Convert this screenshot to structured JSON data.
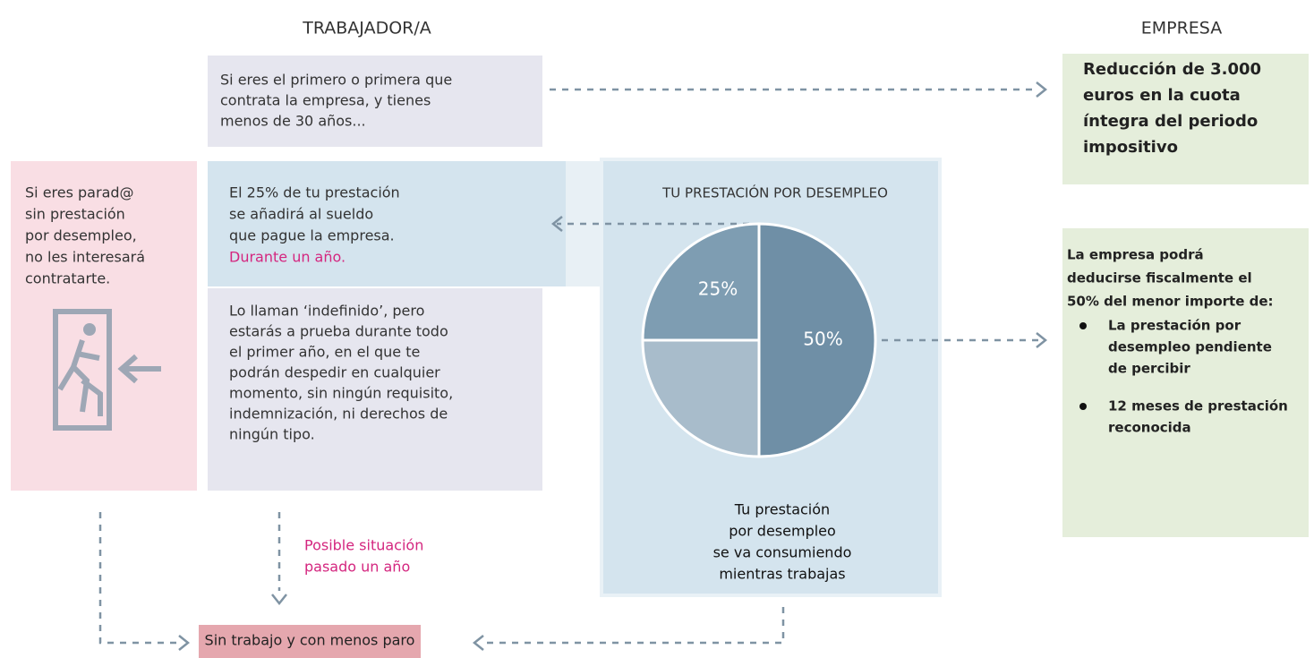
{
  "headers": {
    "worker": "TRABAJADOR/A",
    "company": "EMPRESA"
  },
  "worker": {
    "first_hire": [
      "Si eres el primero o primera que",
      "contrata la empresa, y tienes",
      "menos de 30 años..."
    ],
    "unemployed": [
      "Si eres parad@",
      "sin prestación",
      "por desempleo,",
      "no les interesará",
      "contratarte."
    ],
    "benefit": [
      "El 25% de tu prestación",
      "se añadirá al sueldo",
      "que pague la empresa."
    ],
    "benefit_highlight": "Durante un año.",
    "indefinite": [
      "Lo llaman ‘indefinido’, pero",
      "estarás a prueba durante todo",
      "el primer año, en el que te",
      "podrán despedir en cualquier",
      "momento, sin ningún requisito,",
      "indemnización, ni derechos de",
      "ningún tipo."
    ]
  },
  "company": {
    "reduction": [
      "Reducción de 3.000",
      "euros en la cuota",
      "íntegra del periodo",
      "impositivo"
    ],
    "deduction": [
      "La empresa podrá",
      "deducirse fiscalmente el",
      "50% del menor importe de:"
    ],
    "bullets": [
      [
        "La prestación por",
        "desempleo pendiente",
        "de percibir"
      ],
      [
        "12 meses de prestación",
        "reconocida"
      ]
    ]
  },
  "pie": {
    "title": "TU PRESTACIÓN POR DESEMPLEO",
    "slices": [
      {
        "value": 50,
        "label": "50%",
        "color": "#6f8fa6"
      },
      {
        "value": 25,
        "color": "#a8bccb"
      },
      {
        "value": 25,
        "label": "25%",
        "color": "#7e9db2"
      }
    ],
    "caption": [
      "Tu prestación",
      "por desempleo",
      "se va consumiendo",
      "mientras trabajas"
    ]
  },
  "after_year": [
    "Posible situación",
    "pasado un año"
  ],
  "outcome": "Sin trabajo y con menos paro"
}
